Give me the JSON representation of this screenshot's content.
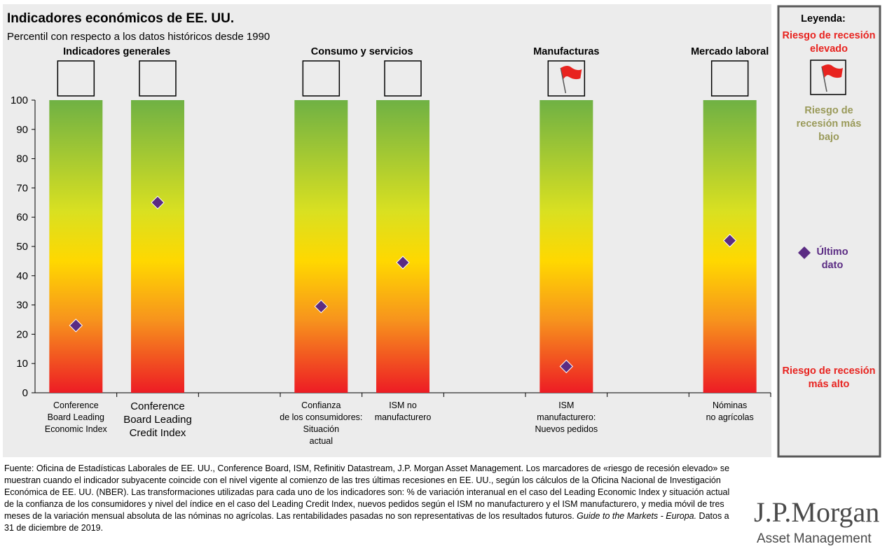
{
  "chart_data": {
    "type": "range-bar",
    "title": "Indicadores económicos de EE. UU.",
    "subtitle": "Percentil con respecto a los datos históricos desde 1990",
    "categories": [
      "Conference\nBoard Leading\nEconomic Index",
      "Conference\nBoard Leading\nCredit Index",
      null,
      "Confianza\nde los consumidores:\nSituación\nactual",
      "ISM no\nmanufacturero",
      null,
      "ISM\nmanufacturero:\nNuevos pedidos",
      null,
      "Nóminas\nno agrícolas"
    ],
    "groups": [
      {
        "label": "Indicadores generales",
        "categories": [
          0,
          1
        ]
      },
      {
        "label": "Consumo y servicios",
        "categories": [
          3,
          4
        ]
      },
      {
        "label": "Manufacturas",
        "categories": [
          6
        ]
      },
      {
        "label": "Mercado laboral",
        "categories": [
          8
        ]
      }
    ],
    "series": [
      {
        "name": "Último dato",
        "color": "#5b2c83",
        "values": [
          23,
          65,
          null,
          29.5,
          44.5,
          null,
          9,
          null,
          52
        ]
      }
    ],
    "flags": [
      false,
      false,
      null,
      false,
      false,
      null,
      true,
      null,
      false
    ],
    "ylim": [
      0,
      100
    ],
    "yticks": [
      0,
      10,
      20,
      30,
      40,
      50,
      60,
      70,
      80,
      90,
      100
    ],
    "legend": {
      "title": "Leyenda:",
      "flag": "Riesgo de recesión elevado",
      "low": "Riesgo de recesión más bajo",
      "high": "Riesgo de recesión más alto"
    }
  },
  "footnote": {
    "text": "Fuente: Oficina de Estadísticas Laborales de EE. UU., Conference Board, ISM, Refinitiv Datastream, J.P. Morgan Asset Management. Los marcadores de «riesgo de recesión elevado» se muestran cuando el indicador subyacente coincide con el nivel vigente al comienzo de las tres últimas recesiones en EE. UU., según los cálculos de la Oficina Nacional de Investigación Económica de EE. UU. (NBER). Las transformaciones utilizadas para cada uno de los indicadores son: % de variación interanual en el caso del Leading Economic Index y situación actual de la confianza de los consumidores y nivel del índice en el caso del Leading Credit Index, nuevos pedidos según el ISM no manufacturero y el ISM manufacturero, y media móvil de tres meses de la variación mensual absoluta de las nóminas no agrícolas. Las rentabilidades pasadas no son representativas de los resultados futuros. ",
    "italic": "Guide to the Markets - Europa.",
    "end": " Datos a 31 de diciembre de 2019."
  },
  "logo": {
    "name": "J.P.Morgan",
    "sub": "Asset Management"
  }
}
